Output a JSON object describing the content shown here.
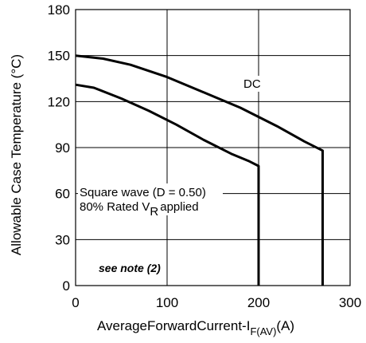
{
  "chart_data": {
    "type": "line",
    "title": "",
    "xlabel": {
      "main": "AverageForwardCurrent-I",
      "sub": "F(AV)",
      "unit": "(A)"
    },
    "ylabel": "Allowable Case Temperature (°C)",
    "xlim": [
      0,
      300
    ],
    "ylim": [
      0,
      180
    ],
    "xticks": [
      0,
      100,
      200,
      300
    ],
    "yticks": [
      0,
      30,
      60,
      90,
      120,
      150,
      180
    ],
    "grid": true,
    "series": [
      {
        "name": "DC",
        "x": [
          0,
          30,
          60,
          100,
          140,
          180,
          220,
          250,
          270,
          270
        ],
        "y": [
          150,
          148,
          144,
          136,
          126,
          116,
          104,
          94,
          88,
          0
        ]
      },
      {
        "name": "",
        "x": [
          0,
          20,
          50,
          80,
          110,
          140,
          170,
          190,
          200,
          200
        ],
        "y": [
          131,
          129,
          122,
          114,
          105,
          95,
          86,
          81,
          78,
          0
        ]
      }
    ],
    "annotations": {
      "dc_label": "DC",
      "square_line1": "Square wave (D = 0.50)",
      "square_line2_pre": "80% Rated V",
      "square_line2_sub": "R",
      "square_line2_post": "applied",
      "note": "see note (2)"
    }
  }
}
